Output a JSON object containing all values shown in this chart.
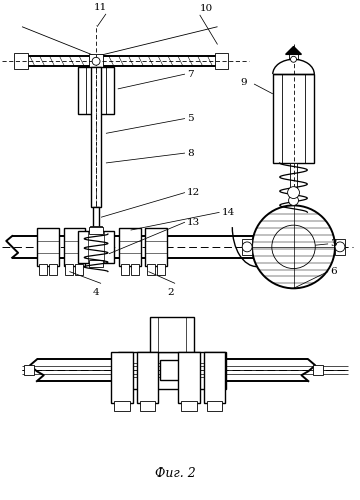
{
  "caption": "Фиг. 2",
  "bg_color": "#ffffff",
  "line_color": "#000000",
  "fig_width": 3.6,
  "fig_height": 5.0,
  "dpi": 100
}
